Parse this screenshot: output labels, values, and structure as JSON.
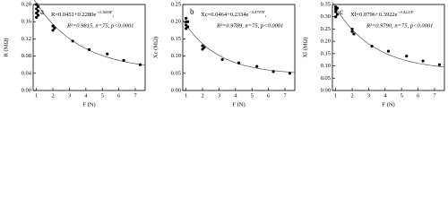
{
  "chart_data": [
    {
      "type": "scatter",
      "annotation": "a",
      "xlabel": "F (N)",
      "ylabel": "R (MΩ)",
      "equation": {
        "base": "R=0.0451+0.2280e",
        "exponent": "−0.3684F",
        "tail": ","
      },
      "stats": "R²=0.9815, n=75, p<0.0001",
      "fit": {
        "a": 0.0451,
        "b": 0.228,
        "k": 0.3684
      },
      "x": [
        1,
        1,
        1,
        1,
        1.1,
        1.1,
        1.1,
        2,
        2,
        2.1,
        3.2,
        4.2,
        5.3,
        6.3,
        7.3
      ],
      "values": [
        0.2,
        0.19,
        0.18,
        0.17,
        0.195,
        0.185,
        0.175,
        0.15,
        0.14,
        0.145,
        0.115,
        0.095,
        0.085,
        0.07,
        0.06
      ],
      "color": "#000000",
      "xlim": [
        0.8,
        7.6
      ],
      "xticks": [
        1,
        2,
        3,
        4,
        5,
        6,
        7
      ],
      "ylim": [
        0,
        0.2
      ],
      "yticks": [
        {
          "value": 0,
          "label": "0.00"
        },
        {
          "value": 0.04,
          "label": "0.04"
        },
        {
          "value": 0.08,
          "label": "0.08"
        },
        {
          "value": 0.12,
          "label": "0.12"
        },
        {
          "value": 0.16,
          "label": "0.16"
        },
        {
          "value": 0.2,
          "label": "0.20"
        }
      ]
    },
    {
      "type": "scatter",
      "annotation": "b",
      "xlabel": "F (N)",
      "ylabel": "Xc (MΩ)",
      "equation": {
        "base": "Xc=0.0464+0.2334e",
        "exponent": "−0.4797F",
        "tail": ","
      },
      "stats": "R²=0.9789, n=75, p<0.0001",
      "fit": {
        "a": 0.0464,
        "b": 0.2334,
        "k": 0.4797
      },
      "x": [
        1,
        1,
        1,
        1,
        1.1,
        1.1,
        2,
        2,
        2.1,
        3.2,
        4.2,
        5.3,
        6.3,
        7.3
      ],
      "values": [
        0.21,
        0.2,
        0.19,
        0.18,
        0.2,
        0.185,
        0.13,
        0.12,
        0.125,
        0.09,
        0.08,
        0.07,
        0.055,
        0.05
      ],
      "color": "#000000",
      "xlim": [
        0.8,
        7.6
      ],
      "xticks": [
        1,
        2,
        3,
        4,
        5,
        6,
        7
      ],
      "ylim": [
        0,
        0.25
      ],
      "yticks": [
        {
          "value": 0,
          "label": "0.00"
        },
        {
          "value": 0.05,
          "label": "0.05"
        },
        {
          "value": 0.1,
          "label": "0.10"
        },
        {
          "value": 0.15,
          "label": "0.15"
        },
        {
          "value": 0.2,
          "label": "0.20"
        },
        {
          "value": 0.25,
          "label": "0.25"
        }
      ]
    },
    {
      "type": "scatter",
      "annotation": "c",
      "xlabel": "F (N)",
      "ylabel": "Xl (MΩ)",
      "equation": {
        "base": "Xl=0.0796+0.3922e",
        "exponent": "−0.4221F",
        "tail": ""
      },
      "stats": "R²=0.9790, n=75, p<0.0001",
      "fit": {
        "a": 0.0796,
        "b": 0.3922,
        "k": 0.4221
      },
      "x": [
        1,
        1,
        1,
        1,
        1.1,
        1.1,
        2,
        2,
        2.1,
        3.2,
        4.2,
        5.3,
        6.3,
        7.3
      ],
      "values": [
        0.34,
        0.33,
        0.32,
        0.3,
        0.335,
        0.31,
        0.25,
        0.24,
        0.23,
        0.18,
        0.16,
        0.14,
        0.12,
        0.105
      ],
      "color": "#000000",
      "xlim": [
        0.8,
        7.6
      ],
      "xticks": [
        1,
        2,
        3,
        4,
        5,
        6,
        7
      ],
      "ylim": [
        0,
        0.35
      ],
      "yticks": [
        {
          "value": 0,
          "label": "0.00"
        },
        {
          "value": 0.05,
          "label": "0.05"
        },
        {
          "value": 0.1,
          "label": "0.10"
        },
        {
          "value": 0.15,
          "label": "0.15"
        },
        {
          "value": 0.2,
          "label": "0.20"
        },
        {
          "value": 0.25,
          "label": "0.25"
        },
        {
          "value": 0.3,
          "label": "0.30"
        },
        {
          "value": 0.35,
          "label": "0.35"
        }
      ]
    }
  ]
}
